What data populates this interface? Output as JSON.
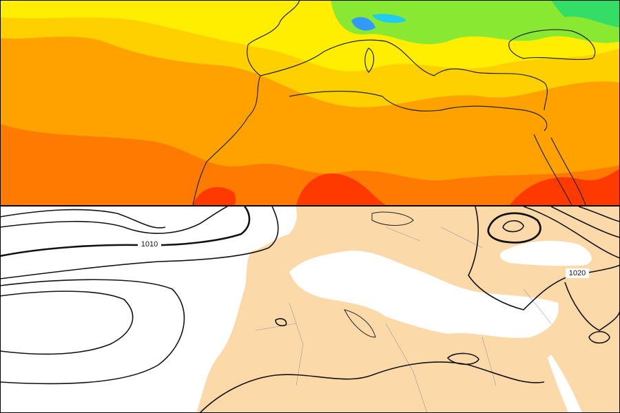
{
  "lower_map": {
    "contour_labels": [
      "1010",
      "1020"
    ]
  }
}
